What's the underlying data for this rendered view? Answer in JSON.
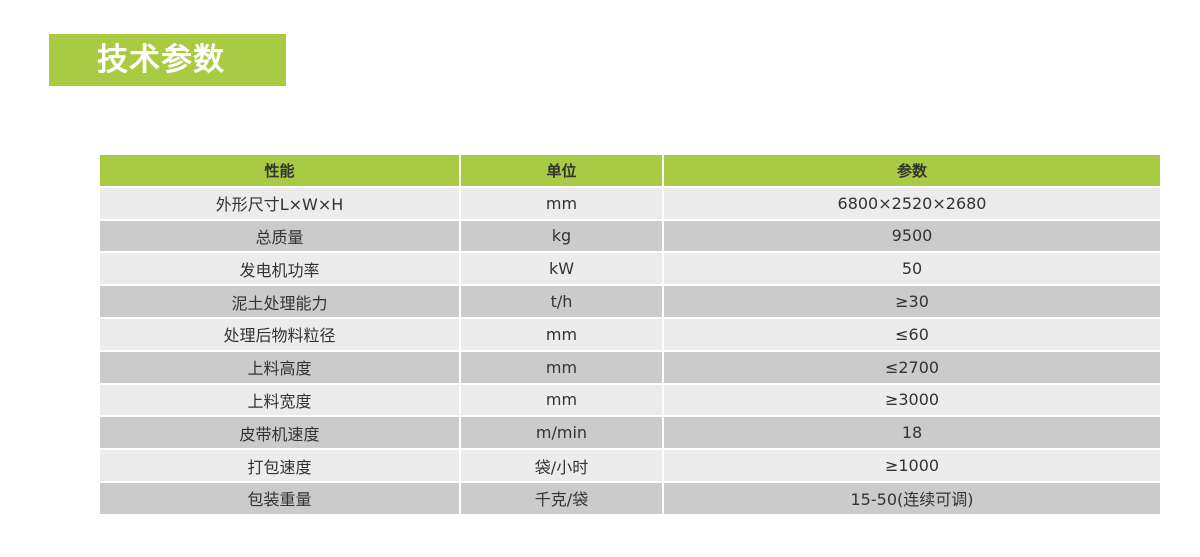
{
  "title": "技术参数",
  "table": {
    "headers": [
      "性能",
      "单位",
      "参数"
    ],
    "rows": [
      [
        "外形尺寸L×W×H",
        "mm",
        "6800×2520×2680"
      ],
      [
        "总质量",
        "kg",
        "9500"
      ],
      [
        "发电机功率",
        "kW",
        "50"
      ],
      [
        "泥土处理能力",
        "t/h",
        "≥30"
      ],
      [
        "处理后物料粒径",
        "mm",
        "≤60"
      ],
      [
        "上料高度",
        "mm",
        "≤2700"
      ],
      [
        "上料宽度",
        "mm",
        "≥3000"
      ],
      [
        "皮带机速度",
        "m/min",
        "18"
      ],
      [
        "打包速度",
        "袋/小时",
        "≥1000"
      ],
      [
        "包装重量",
        "千克/袋",
        "15-50(连续可调)"
      ]
    ]
  },
  "colors": {
    "accent": "#a9cb44",
    "row_light": "#ececec",
    "row_dark": "#cbcbcb"
  }
}
